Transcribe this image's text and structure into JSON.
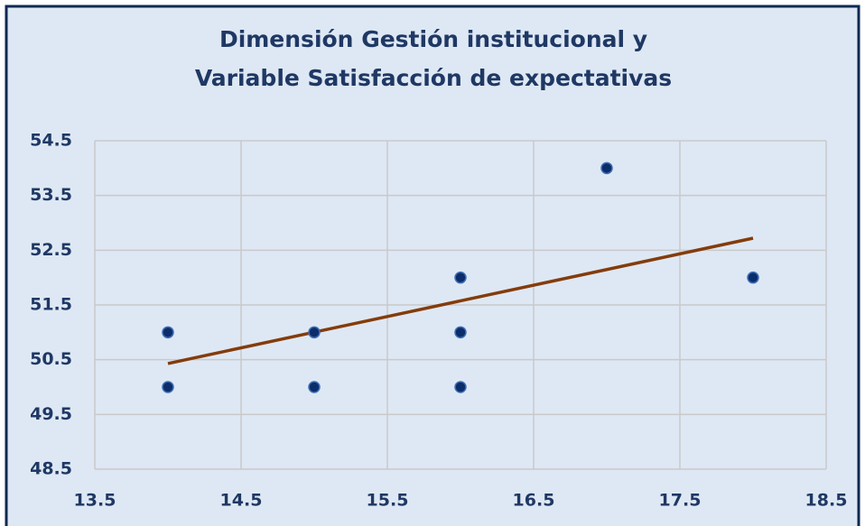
{
  "chart_data": {
    "type": "scatter",
    "title": [
      "Dimensión Gestión institucional y",
      "Variable  Satisfacción de expectativas"
    ],
    "series": [
      {
        "color": "#0b2d6b",
        "x": [
          14,
          14,
          15,
          15,
          16,
          16,
          16,
          17,
          18
        ],
        "values": [
          51,
          50,
          51,
          50,
          52,
          51,
          50,
          54,
          52
        ]
      }
    ],
    "trendline": {
      "color": "#843c0c",
      "x": [
        14,
        18
      ],
      "values": [
        50.43,
        52.72
      ]
    },
    "xlim": [
      13.5,
      18.5
    ],
    "xticks": [
      13.5,
      14.5,
      15.5,
      16.5,
      17.5,
      18.5
    ],
    "ylim": [
      48.5,
      54.5
    ],
    "yticks": [
      48.5,
      49.5,
      50.5,
      51.5,
      52.5,
      53.5,
      54.5
    ],
    "grid": true
  }
}
